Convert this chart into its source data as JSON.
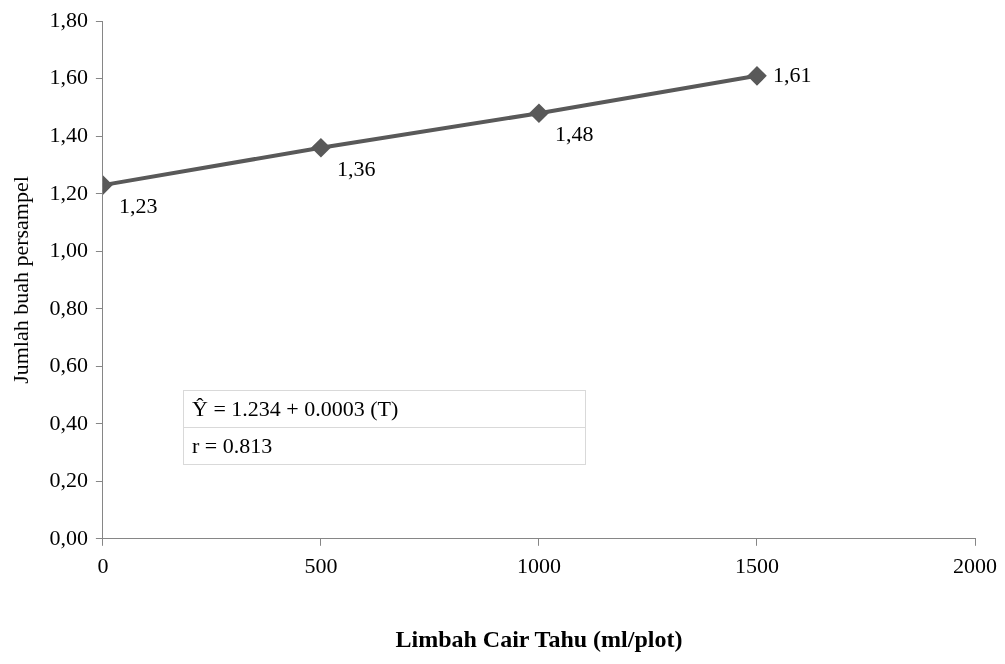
{
  "chart_data": {
    "type": "line",
    "xlabel": "Limbah Cair Tahu (ml/plot)",
    "ylabel": "Jumlah buah persampel",
    "x": [
      0,
      500,
      1000,
      1500
    ],
    "series": [
      {
        "color": "#595959",
        "values": [
          1.23,
          1.36,
          1.48,
          1.61
        ],
        "value_labels": [
          "1,23",
          "1,36",
          "1,48",
          "1,61"
        ]
      }
    ],
    "xlim": [
      0,
      2000
    ],
    "xticks": [
      0,
      500,
      1000,
      1500,
      2000
    ],
    "ylim": [
      0,
      1.8
    ],
    "yticks": [
      {
        "value": 0,
        "label": "0,00"
      },
      {
        "value": 0.2,
        "label": "0,20"
      },
      {
        "value": 0.4,
        "label": "0,40"
      },
      {
        "value": 0.6,
        "label": "0,60"
      },
      {
        "value": 0.8,
        "label": "0,80"
      },
      {
        "value": 1.0,
        "label": "1,00"
      },
      {
        "value": 1.2,
        "label": "1,20"
      },
      {
        "value": 1.4,
        "label": "1,40"
      },
      {
        "value": 1.6,
        "label": "1,60"
      },
      {
        "value": 1.8,
        "label": "1,80"
      }
    ],
    "annotations": [
      "Ŷ = 1.234 + 0.0003 (T)",
      "r = 0.813"
    ],
    "marker": "diamond",
    "line_style": "solid",
    "legend": false,
    "grid": false
  }
}
